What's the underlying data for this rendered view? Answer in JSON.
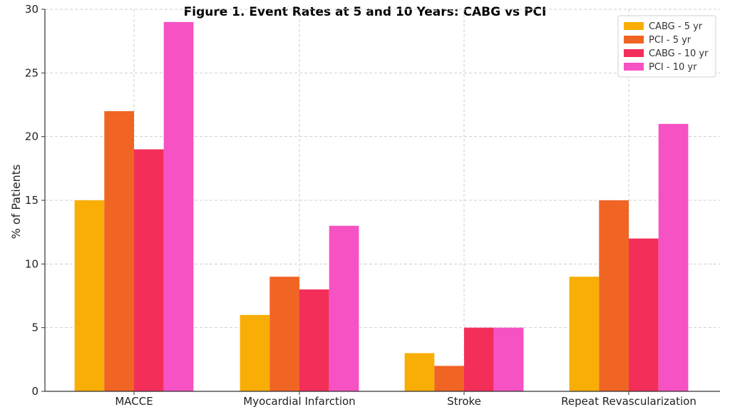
{
  "chart_data": {
    "type": "bar",
    "title": "Figure 1. Event Rates at 5 and 10 Years: CABG vs PCI",
    "xlabel": "",
    "ylabel": "% of Patients",
    "ylim": [
      0,
      30
    ],
    "yticks": [
      0,
      5,
      10,
      15,
      20,
      25,
      30
    ],
    "grid": true,
    "legend_position": "top-right",
    "categories": [
      "MACCE",
      "Myocardial Infarction",
      "Stroke",
      "Repeat Revascularization"
    ],
    "series": [
      {
        "name": "CABG - 5 yr",
        "color": "#F9AE06",
        "values": [
          15,
          6,
          3,
          9
        ]
      },
      {
        "name": "PCI - 5 yr",
        "color": "#F06424",
        "values": [
          22,
          9,
          2,
          15
        ]
      },
      {
        "name": "CABG - 10 yr",
        "color": "#F22E59",
        "values": [
          19,
          8,
          5,
          12
        ]
      },
      {
        "name": "PCI - 10 yr",
        "color": "#F652C3",
        "values": [
          29,
          13,
          5,
          21
        ]
      }
    ]
  }
}
